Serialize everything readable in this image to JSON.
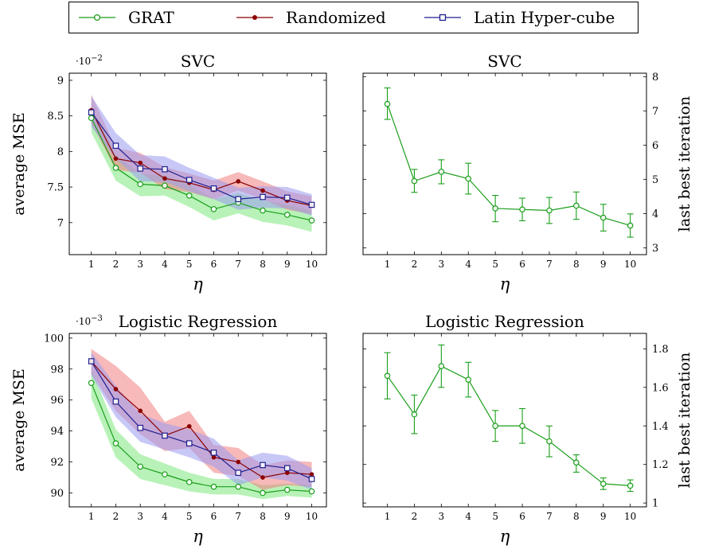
{
  "legend": [
    {
      "label": "GRAT",
      "color": "#1a9e1a",
      "marker": "circle"
    },
    {
      "label": "Randomized",
      "color": "#8b0000",
      "marker": "dot"
    },
    {
      "label": "Latin Hyper-cube",
      "color": "#1f1f8f",
      "marker": "square"
    }
  ],
  "colors": {
    "grat_band": "#7ee87e",
    "randomized_band": "#f07f7f",
    "latin_band": "#9a9af0"
  },
  "chart_data": [
    {
      "type": "line",
      "title": "SVC",
      "xlabel": "η",
      "ylabel": "average MSE",
      "scale_note": "·10^−2",
      "x": [
        1,
        2,
        3,
        4,
        5,
        6,
        7,
        8,
        9,
        10
      ],
      "xlim": [
        0.1,
        10.6
      ],
      "ylim": [
        6.55,
        9.1
      ],
      "yticks": [
        7,
        7.5,
        8,
        8.5,
        9
      ],
      "ytick_labels": [
        "7",
        "7.5",
        "8",
        "8.5",
        "9"
      ],
      "series": [
        {
          "name": "GRAT",
          "values": [
            8.47,
            7.77,
            7.54,
            7.52,
            7.38,
            7.19,
            7.28,
            7.17,
            7.11,
            7.03
          ],
          "lower": [
            8.27,
            7.59,
            7.37,
            7.38,
            7.22,
            7.03,
            7.13,
            7.01,
            6.96,
            6.87
          ],
          "upper": [
            8.64,
            7.95,
            7.69,
            7.66,
            7.53,
            7.33,
            7.42,
            7.31,
            7.25,
            7.17
          ]
        },
        {
          "name": "Randomized",
          "values": [
            8.58,
            7.9,
            7.84,
            7.62,
            7.56,
            7.46,
            7.58,
            7.45,
            7.31,
            7.24
          ],
          "lower": [
            8.4,
            7.74,
            7.7,
            7.47,
            7.43,
            7.33,
            7.45,
            7.33,
            7.18,
            7.12
          ],
          "upper": [
            8.8,
            8.05,
            7.98,
            7.78,
            7.69,
            7.59,
            7.71,
            7.58,
            7.44,
            7.37
          ]
        },
        {
          "name": "Latin Hyper-cube",
          "values": [
            8.55,
            8.08,
            7.76,
            7.75,
            7.6,
            7.48,
            7.33,
            7.36,
            7.35,
            7.25
          ],
          "lower": [
            8.35,
            7.9,
            7.58,
            7.57,
            7.44,
            7.33,
            7.18,
            7.21,
            7.2,
            7.1
          ],
          "upper": [
            8.78,
            8.26,
            7.95,
            7.93,
            7.77,
            7.63,
            7.49,
            7.51,
            7.5,
            7.4
          ]
        }
      ]
    },
    {
      "type": "line",
      "title": "SVC",
      "xlabel": "η",
      "ylabel": "last best iteration",
      "x": [
        1,
        2,
        3,
        4,
        5,
        6,
        7,
        8,
        9,
        10
      ],
      "xlim": [
        0.1,
        10.6
      ],
      "ylim": [
        2.8,
        8.1
      ],
      "yticks": [
        3,
        4,
        5,
        6,
        7,
        8
      ],
      "ytick_labels": [
        "3",
        "4",
        "5",
        "6",
        "7",
        "8"
      ],
      "series": [
        {
          "name": "GRAT",
          "values": [
            7.2,
            4.95,
            5.22,
            5.02,
            4.15,
            4.12,
            4.09,
            4.23,
            3.88,
            3.65
          ],
          "lower": [
            6.75,
            4.62,
            4.87,
            4.57,
            3.76,
            3.79,
            3.71,
            3.83,
            3.49,
            3.31
          ],
          "upper": [
            7.67,
            5.29,
            5.57,
            5.47,
            4.53,
            4.45,
            4.47,
            4.63,
            4.27,
            3.99
          ]
        }
      ]
    },
    {
      "type": "line",
      "title": "Logistic Regression",
      "xlabel": "η",
      "ylabel": "average MSE",
      "scale_note": "·10^−3",
      "x": [
        1,
        2,
        3,
        4,
        5,
        6,
        7,
        8,
        9,
        10
      ],
      "xlim": [
        0.1,
        10.6
      ],
      "ylim": [
        89.1,
        100.3
      ],
      "yticks": [
        90,
        92,
        94,
        96,
        98,
        100
      ],
      "ytick_labels": [
        "90",
        "92",
        "94",
        "96",
        "98",
        "100"
      ],
      "series": [
        {
          "name": "GRAT",
          "values": [
            97.1,
            93.2,
            91.7,
            91.2,
            90.7,
            90.4,
            90.4,
            90.0,
            90.2,
            90.1
          ],
          "lower": [
            96.1,
            92.3,
            90.9,
            90.5,
            90.1,
            89.9,
            89.9,
            89.6,
            89.8,
            89.7
          ],
          "upper": [
            98.0,
            94.1,
            92.5,
            91.9,
            91.3,
            90.9,
            90.9,
            90.5,
            90.6,
            90.5
          ]
        },
        {
          "name": "Randomized",
          "values": [
            98.5,
            96.7,
            95.3,
            93.7,
            94.3,
            92.3,
            92.0,
            91.0,
            91.3,
            91.2
          ],
          "lower": [
            97.7,
            95.3,
            93.8,
            92.7,
            92.9,
            91.3,
            91.1,
            90.2,
            90.5,
            90.4
          ],
          "upper": [
            99.3,
            98.2,
            96.8,
            94.6,
            95.3,
            93.1,
            92.9,
            91.8,
            92.1,
            92.0
          ]
        },
        {
          "name": "Latin Hyper-cube",
          "values": [
            98.5,
            95.9,
            94.2,
            93.7,
            93.2,
            92.6,
            91.3,
            91.8,
            91.6,
            90.9
          ],
          "lower": [
            97.6,
            94.9,
            93.3,
            92.8,
            92.3,
            91.7,
            90.5,
            91.0,
            90.8,
            90.2
          ],
          "upper": [
            99.1,
            96.9,
            95.1,
            94.5,
            94.1,
            93.5,
            92.1,
            92.6,
            92.4,
            91.6
          ]
        }
      ]
    },
    {
      "type": "line",
      "title": "Logistic Regression",
      "xlabel": "η",
      "ylabel": "last best iteration",
      "x": [
        1,
        2,
        3,
        4,
        5,
        6,
        7,
        8,
        9,
        10
      ],
      "xlim": [
        0.1,
        10.6
      ],
      "ylim": [
        0.98,
        1.88
      ],
      "yticks": [
        1,
        1.2,
        1.4,
        1.6,
        1.8
      ],
      "ytick_labels": [
        "1",
        "1.2",
        "1.4",
        "1.6",
        "1.8"
      ],
      "series": [
        {
          "name": "GRAT",
          "values": [
            1.66,
            1.46,
            1.71,
            1.64,
            1.4,
            1.4,
            1.32,
            1.21,
            1.1,
            1.09
          ],
          "lower": [
            1.54,
            1.36,
            1.6,
            1.55,
            1.32,
            1.31,
            1.24,
            1.16,
            1.07,
            1.06
          ],
          "upper": [
            1.78,
            1.56,
            1.82,
            1.73,
            1.48,
            1.49,
            1.4,
            1.25,
            1.13,
            1.12
          ]
        }
      ]
    }
  ]
}
